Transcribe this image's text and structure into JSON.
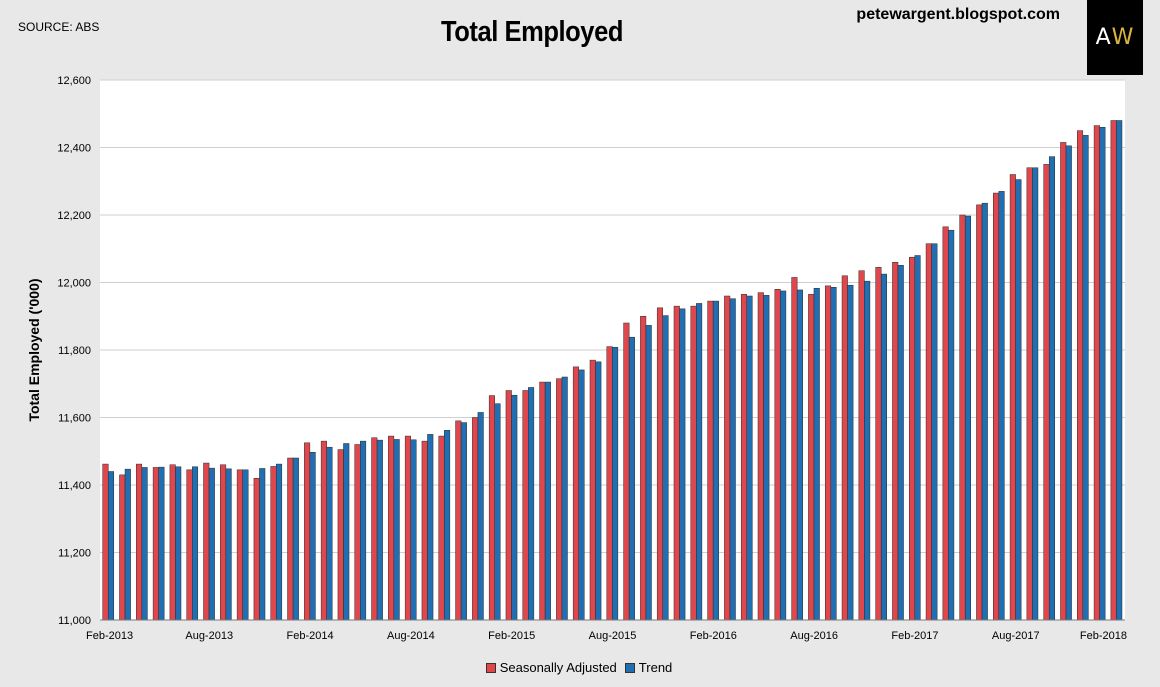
{
  "header": {
    "source": "SOURCE: ABS",
    "title": "Total Employed",
    "blog": "petewargent.blogspot.com",
    "logo_text_a": "A",
    "logo_text_w": "W"
  },
  "chart_data": {
    "type": "bar",
    "title": "Total Employed",
    "ylabel": "Total Employed ('000)",
    "xlabel": "",
    "ylim": [
      11000,
      12600
    ],
    "yticks": [
      11000,
      11200,
      11400,
      11600,
      11800,
      12000,
      12200,
      12400,
      12600
    ],
    "ytick_labels": [
      "11,000",
      "11,200",
      "11,400",
      "11,600",
      "11,800",
      "12,000",
      "12,200",
      "12,400",
      "12,600"
    ],
    "xtick_labels": [
      "Feb-2013",
      "Aug-2013",
      "Feb-2014",
      "Aug-2014",
      "Feb-2015",
      "Aug-2015",
      "Feb-2016",
      "Aug-2016",
      "Feb-2017",
      "Aug-2017",
      "Feb-2018"
    ],
    "grid": true,
    "legend_position": "bottom-center",
    "colors": {
      "seasonally_adjusted": "#e0474c",
      "trend": "#1f6fb2"
    },
    "categories": [
      "Feb-2013",
      "Mar-2013",
      "Apr-2013",
      "May-2013",
      "Jun-2013",
      "Jul-2013",
      "Aug-2013",
      "Sep-2013",
      "Oct-2013",
      "Nov-2013",
      "Dec-2013",
      "Jan-2014",
      "Feb-2014",
      "Mar-2014",
      "Apr-2014",
      "May-2014",
      "Jun-2014",
      "Jul-2014",
      "Aug-2014",
      "Sep-2014",
      "Oct-2014",
      "Nov-2014",
      "Dec-2014",
      "Jan-2015",
      "Feb-2015",
      "Mar-2015",
      "Apr-2015",
      "May-2015",
      "Jun-2015",
      "Jul-2015",
      "Aug-2015",
      "Sep-2015",
      "Oct-2015",
      "Nov-2015",
      "Dec-2015",
      "Jan-2016",
      "Feb-2016",
      "Mar-2016",
      "Apr-2016",
      "May-2016",
      "Jun-2016",
      "Jul-2016",
      "Aug-2016",
      "Sep-2016",
      "Oct-2016",
      "Nov-2016",
      "Dec-2016",
      "Jan-2017",
      "Feb-2017",
      "Mar-2017",
      "Apr-2017",
      "May-2017",
      "Jun-2017",
      "Jul-2017",
      "Aug-2017",
      "Sep-2017",
      "Oct-2017",
      "Nov-2017",
      "Dec-2017",
      "Jan-2018",
      "Feb-2018"
    ],
    "series": [
      {
        "name": "Seasonally Adjusted",
        "values": [
          11462,
          11430,
          11462,
          11452,
          11460,
          11445,
          11465,
          11460,
          11445,
          11420,
          11455,
          11480,
          11525,
          11530,
          11505,
          11520,
          11540,
          11545,
          11545,
          11530,
          11545,
          11590,
          11600,
          11665,
          11680,
          11680,
          11705,
          11715,
          11750,
          11770,
          11810,
          11880,
          11900,
          11925,
          11930,
          11930,
          11945,
          11960,
          11965,
          11970,
          11980,
          12015,
          11965,
          11990,
          12020,
          12035,
          12045,
          12060,
          12075,
          12115,
          12165,
          12200,
          12230,
          12265,
          12320,
          12340,
          12350,
          12415,
          12450,
          12465,
          12480
        ]
      },
      {
        "name": "Trend",
        "values": [
          11440,
          11447,
          11452,
          11453,
          11454,
          11454,
          11450,
          11448,
          11445,
          11449,
          11462,
          11480,
          11497,
          11512,
          11523,
          11530,
          11533,
          11535,
          11534,
          11550,
          11562,
          11585,
          11615,
          11641,
          11666,
          11689,
          11705,
          11720,
          11741,
          11765,
          11808,
          11838,
          11873,
          11902,
          11922,
          11938,
          11945,
          11952,
          11960,
          11962,
          11975,
          11978,
          11983,
          11986,
          11992,
          12004,
          12025,
          12051,
          12080,
          12115,
          12155,
          12197,
          12235,
          12270,
          12305,
          12340,
          12373,
          12405,
          12436,
          12460,
          12480
        ]
      }
    ]
  }
}
